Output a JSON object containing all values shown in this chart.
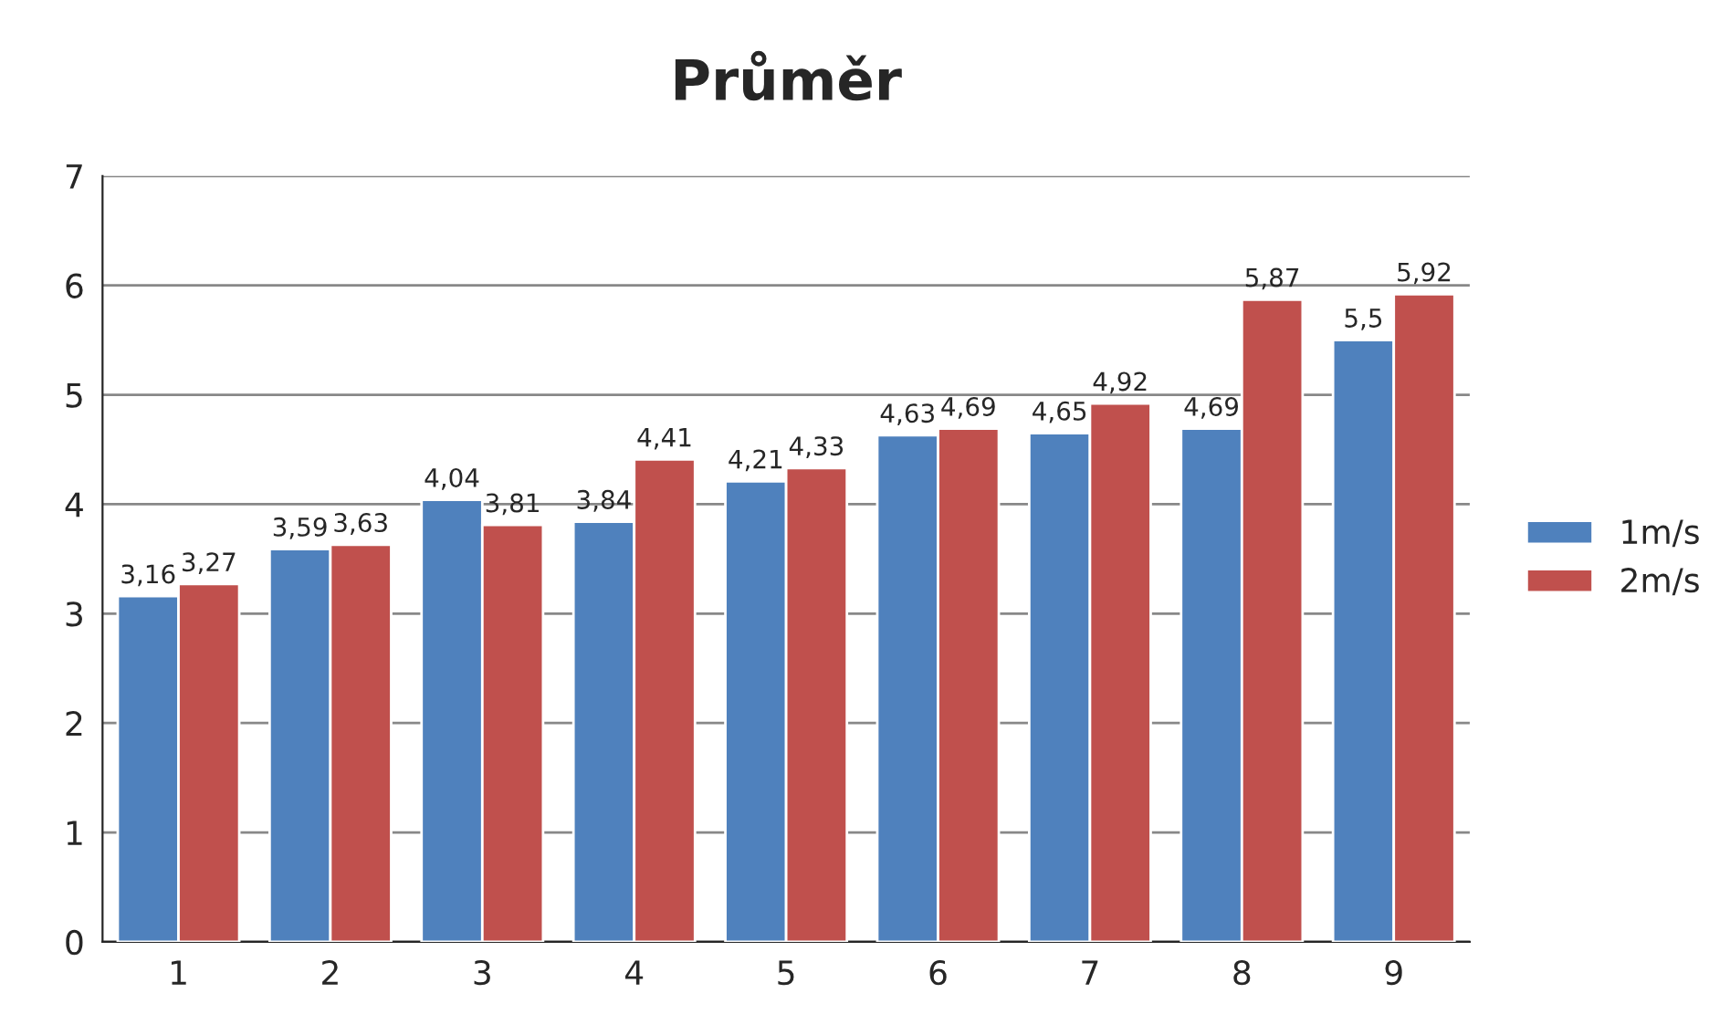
{
  "chart_data": {
    "type": "bar",
    "title": "Průměr",
    "categories": [
      "1",
      "2",
      "3",
      "4",
      "5",
      "6",
      "7",
      "8",
      "9"
    ],
    "series": [
      {
        "name": "1m/s",
        "color": "#4f81bd",
        "values": [
          3.16,
          3.59,
          4.04,
          3.84,
          4.21,
          4.63,
          4.65,
          4.69,
          5.5
        ],
        "value_labels": [
          "3,16",
          "3,59",
          "4,04",
          "3,84",
          "4,21",
          "4,63",
          "4,65",
          "4,69",
          "5,5"
        ]
      },
      {
        "name": "2m/s",
        "color": "#c0504d",
        "values": [
          3.27,
          3.63,
          3.81,
          4.41,
          4.33,
          4.69,
          4.92,
          5.87,
          5.92
        ],
        "value_labels": [
          "3,27",
          "3,63",
          "3,81",
          "4,41",
          "4,33",
          "4,69",
          "4,92",
          "5,87",
          "5,92"
        ]
      }
    ],
    "ylim": [
      0,
      7
    ],
    "yticks": [
      0,
      1,
      2,
      3,
      4,
      5,
      6,
      7
    ],
    "grid": "y",
    "legend": "right"
  }
}
